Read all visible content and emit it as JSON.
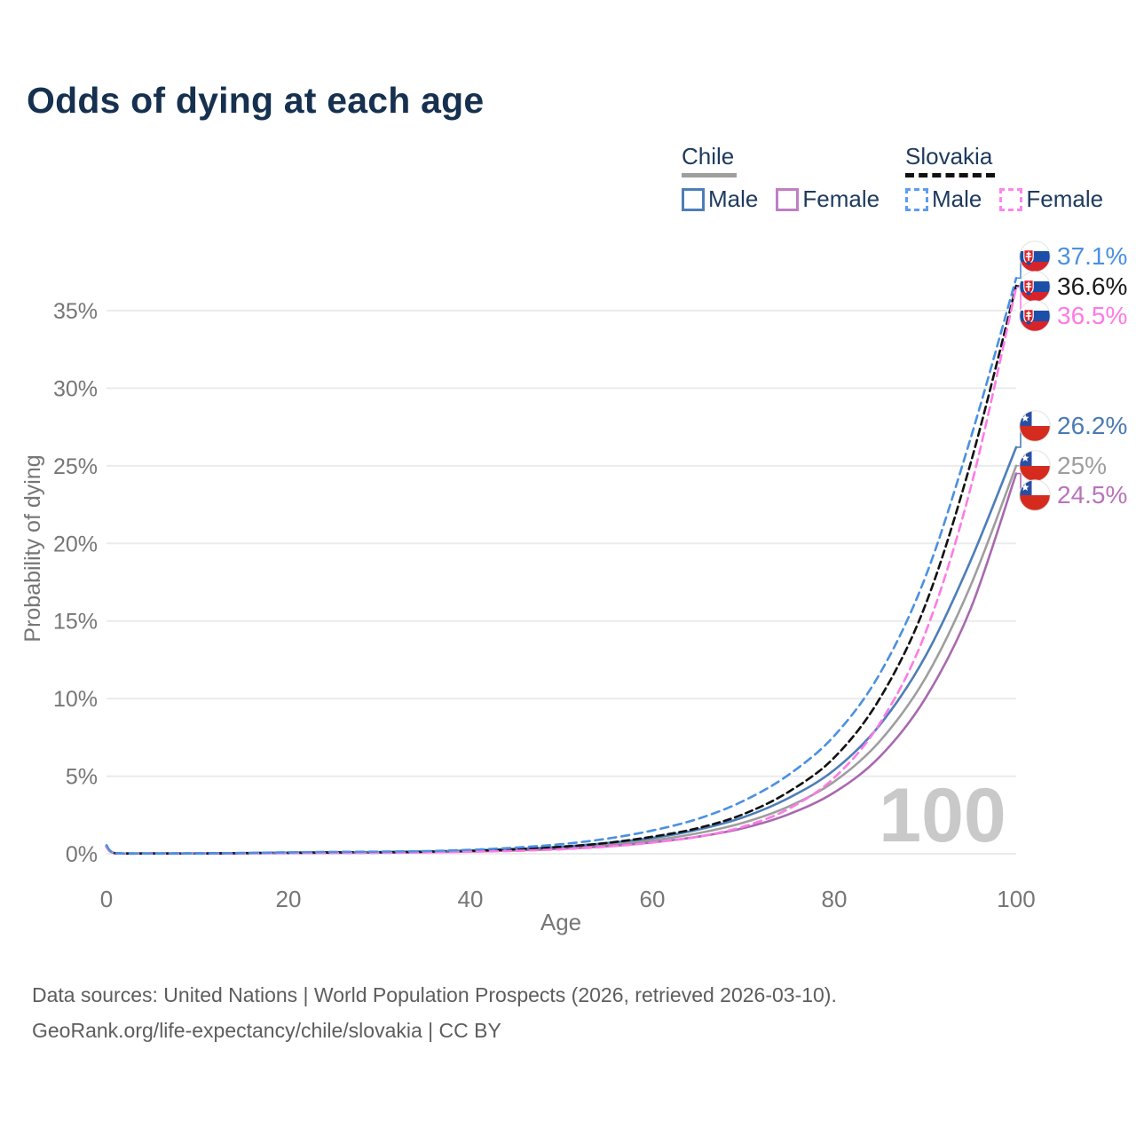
{
  "page": {
    "title": "Odds of dying at each age"
  },
  "legend": {
    "groups": [
      {
        "name": "Chile",
        "line_style": "solid",
        "underline_color": "#9e9e9e",
        "items": [
          {
            "label": "Male",
            "color": "#4d7eb8"
          },
          {
            "label": "Female",
            "color": "#c07ec5"
          }
        ]
      },
      {
        "name": "Slovakia",
        "line_style": "dashed",
        "underline_color": "#111111",
        "items": [
          {
            "label": "Male",
            "color": "#5b9cf0"
          },
          {
            "label": "Female",
            "color": "#ff85ea"
          }
        ]
      }
    ]
  },
  "chart_data": {
    "type": "line",
    "title": "Odds of dying at each age",
    "xlabel": "Age",
    "ylabel": "Probability of dying",
    "x_ticks": [
      0,
      20,
      40,
      60,
      80,
      100
    ],
    "y_tick_values": [
      0,
      5,
      10,
      15,
      20,
      25,
      30,
      35
    ],
    "y_tick_labels": [
      "0%",
      "5%",
      "10%",
      "15%",
      "20%",
      "25%",
      "30%",
      "35%"
    ],
    "xlim": [
      0,
      100
    ],
    "ylim_pct": [
      0,
      37.5
    ],
    "grid": "horizontal",
    "legend_position": "top-right",
    "age_watermark": "100",
    "ages": [
      0,
      1,
      5,
      10,
      15,
      20,
      25,
      30,
      35,
      40,
      45,
      50,
      55,
      60,
      65,
      70,
      75,
      80,
      85,
      90,
      95,
      100
    ],
    "series": [
      {
        "name": "Chile Average",
        "country": "chile",
        "sex": "all",
        "dash": "",
        "color": "#9e9e9e",
        "text_color": "#9e9e9e",
        "label": "25%",
        "values": [
          0.45,
          0.03,
          0.018,
          0.018,
          0.038,
          0.06,
          0.075,
          0.095,
          0.12,
          0.175,
          0.26,
          0.39,
          0.58,
          0.87,
          1.32,
          2.0,
          3.05,
          4.65,
          7.25,
          11.3,
          17.3,
          25.0
        ]
      },
      {
        "name": "Chile Female",
        "country": "chile",
        "sex": "female",
        "dash": "",
        "color": "#a869ae",
        "text_color": "#b873bb",
        "label": "24.5%",
        "values": [
          0.42,
          0.028,
          0.015,
          0.015,
          0.03,
          0.047,
          0.06,
          0.077,
          0.1,
          0.145,
          0.215,
          0.32,
          0.48,
          0.73,
          1.1,
          1.65,
          2.55,
          3.95,
          6.25,
          10.0,
          15.8,
          24.5
        ]
      },
      {
        "name": "Chile Male",
        "country": "chile",
        "sex": "male",
        "dash": "",
        "color": "#4d7eb8",
        "text_color": "#4a7ab5",
        "label": "26.2%",
        "values": [
          0.5,
          0.035,
          0.02,
          0.02,
          0.045,
          0.075,
          0.095,
          0.115,
          0.145,
          0.21,
          0.31,
          0.46,
          0.69,
          1.02,
          1.55,
          2.35,
          3.6,
          5.4,
          8.3,
          12.7,
          18.9,
          26.2
        ]
      },
      {
        "name": "Slovakia Average",
        "country": "slovakia",
        "sex": "all",
        "dash": "8 5",
        "color": "#111111",
        "text_color": "#1a1a1a",
        "label": "36.6%",
        "values": [
          0.5,
          0.035,
          0.018,
          0.018,
          0.04,
          0.065,
          0.085,
          0.1,
          0.13,
          0.19,
          0.29,
          0.45,
          0.7,
          1.1,
          1.65,
          2.55,
          4.0,
          6.2,
          10.0,
          16.0,
          25.2,
          36.6
        ]
      },
      {
        "name": "Slovakia Female",
        "country": "slovakia",
        "sex": "female",
        "dash": "9 6",
        "color": "#ff7ae5",
        "text_color": "#ff7ae5",
        "label": "36.5%",
        "values": [
          0.45,
          0.03,
          0.015,
          0.015,
          0.03,
          0.04,
          0.05,
          0.06,
          0.09,
          0.13,
          0.19,
          0.29,
          0.46,
          0.72,
          1.1,
          1.75,
          2.9,
          4.9,
          8.4,
          14.2,
          23.6,
          36.5
        ]
      },
      {
        "name": "Slovakia Male",
        "country": "slovakia",
        "sex": "male",
        "dash": "9 6",
        "color": "#4a90e2",
        "text_color": "#4a90e2",
        "label": "37.1%",
        "values": [
          0.55,
          0.04,
          0.02,
          0.02,
          0.05,
          0.09,
          0.12,
          0.14,
          0.17,
          0.26,
          0.4,
          0.62,
          0.97,
          1.5,
          2.25,
          3.4,
          5.1,
          7.6,
          11.6,
          17.8,
          26.8,
          37.1
        ]
      }
    ]
  },
  "footer": {
    "line1": "Data sources: United Nations | World Population Prospects (2026, retrieved 2026-03-10).",
    "line2": "GeoRank.org/life-expectancy/chile/slovakia | CC BY"
  }
}
